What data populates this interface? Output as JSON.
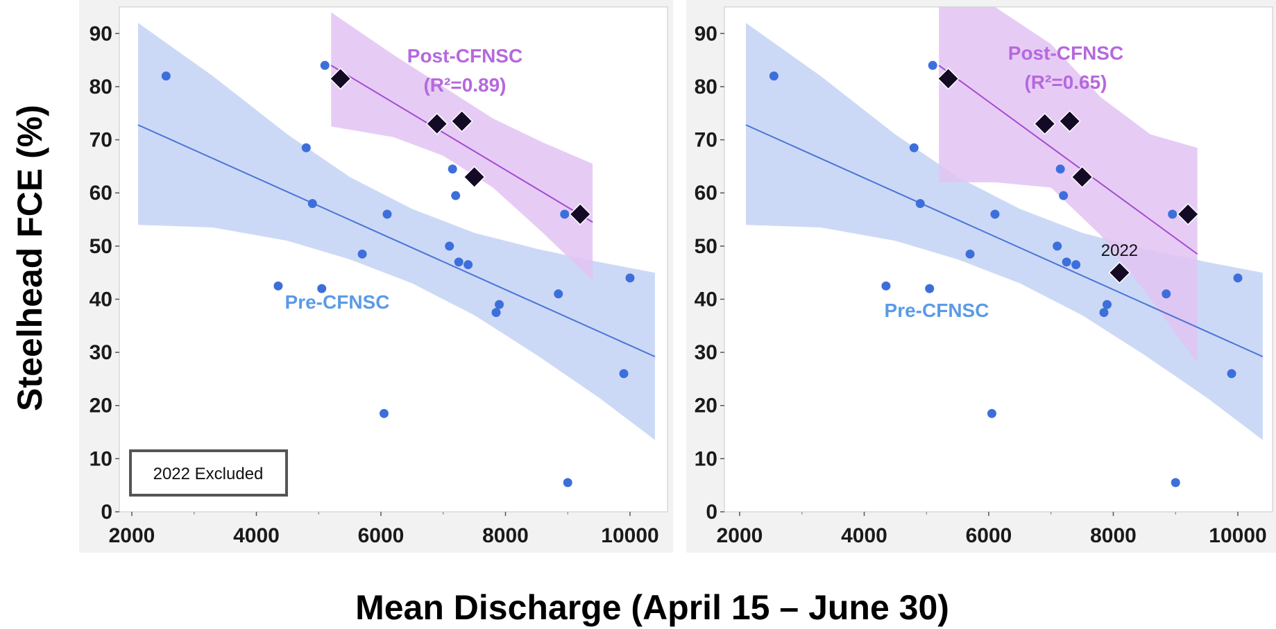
{
  "xlabel": "Mean Discharge (April 15 – June 30)",
  "ylabel": "Steelhead FCE (%)",
  "colors": {
    "pre_point": "#3d6fdb",
    "pre_line": "#4a74d6",
    "pre_band": "#c9d7f5",
    "post_point": "#150a26",
    "post_line": "#a64ad1",
    "post_band": "#e2c3f3",
    "post_label": "#b668dd",
    "pre_label": "#5b9be6"
  },
  "chart_data": [
    {
      "type": "scatter",
      "panel": "left",
      "xlim": [
        1900,
        10500
      ],
      "ylim": [
        0,
        95
      ],
      "x_ticks": [
        2000,
        4000,
        6000,
        8000,
        10000
      ],
      "y_ticks": [
        0,
        10,
        20,
        30,
        40,
        50,
        60,
        70,
        80,
        90
      ],
      "grid": false,
      "annotation": "2022 Excluded",
      "series": [
        {
          "name": "Pre-CFNSC",
          "marker": "circle",
          "points": [
            [
              2550,
              82
            ],
            [
              4350,
              42.5
            ],
            [
              4800,
              68.5
            ],
            [
              4900,
              58
            ],
            [
              5050,
              42
            ],
            [
              5100,
              84
            ],
            [
              5700,
              48.5
            ],
            [
              6050,
              18.5
            ],
            [
              6100,
              56
            ],
            [
              7100,
              50
            ],
            [
              7150,
              64.5
            ],
            [
              7200,
              59.5
            ],
            [
              7250,
              47
            ],
            [
              7400,
              46.5
            ],
            [
              7850,
              37.5
            ],
            [
              7900,
              39
            ],
            [
              8850,
              41
            ],
            [
              8950,
              56
            ],
            [
              9000,
              5.5
            ],
            [
              9900,
              26
            ],
            [
              10000,
              44
            ]
          ],
          "fit": {
            "x": [
              2100,
              10400
            ],
            "y": [
              72.8,
              29.2
            ]
          },
          "band_upper": [
            [
              2100,
              92
            ],
            [
              3300,
              82
            ],
            [
              4500,
              71
            ],
            [
              5500,
              63
            ],
            [
              6500,
              57
            ],
            [
              7500,
              52.5
            ],
            [
              8500,
              49.5
            ],
            [
              9500,
              47
            ],
            [
              10400,
              45
            ]
          ],
          "band_lower": [
            [
              2100,
              54
            ],
            [
              3300,
              53.5
            ],
            [
              4500,
              51
            ],
            [
              5500,
              47.5
            ],
            [
              6500,
              43
            ],
            [
              7500,
              37
            ],
            [
              8500,
              29.5
            ],
            [
              9500,
              21.5
            ],
            [
              10400,
              13.5
            ]
          ]
        },
        {
          "name": "Post-CFNSC",
          "label_detail": "(R²=0.89)",
          "marker": "diamond",
          "points": [
            [
              5350,
              81.5
            ],
            [
              6900,
              73
            ],
            [
              7300,
              73.5
            ],
            [
              7500,
              63
            ],
            [
              9200,
              56
            ]
          ],
          "fit": {
            "x": [
              5200,
              9400
            ],
            "y": [
              84,
              54.5
            ]
          },
          "band_upper": [
            [
              5200,
              94
            ],
            [
              6200,
              86
            ],
            [
              7000,
              80
            ],
            [
              7800,
              74
            ],
            [
              8600,
              69.5
            ],
            [
              9400,
              65.5
            ]
          ],
          "band_lower": [
            [
              5200,
              72.5
            ],
            [
              6200,
              70.5
            ],
            [
              7000,
              67
            ],
            [
              7800,
              61
            ],
            [
              8600,
              52.5
            ],
            [
              9400,
              43.5
            ]
          ]
        }
      ]
    },
    {
      "type": "scatter",
      "panel": "right",
      "xlim": [
        1900,
        10500
      ],
      "ylim": [
        0,
        95
      ],
      "x_ticks": [
        2000,
        4000,
        6000,
        8000,
        10000
      ],
      "y_ticks": [
        0,
        10,
        20,
        30,
        40,
        50,
        60,
        70,
        80,
        90
      ],
      "grid": false,
      "series": [
        {
          "name": "Pre-CFNSC",
          "marker": "circle",
          "points": [
            [
              2550,
              82
            ],
            [
              4350,
              42.5
            ],
            [
              4800,
              68.5
            ],
            [
              4900,
              58
            ],
            [
              5050,
              42
            ],
            [
              5100,
              84
            ],
            [
              5700,
              48.5
            ],
            [
              6050,
              18.5
            ],
            [
              6100,
              56
            ],
            [
              7100,
              50
            ],
            [
              7150,
              64.5
            ],
            [
              7200,
              59.5
            ],
            [
              7250,
              47
            ],
            [
              7400,
              46.5
            ],
            [
              7850,
              37.5
            ],
            [
              7900,
              39
            ],
            [
              8850,
              41
            ],
            [
              8950,
              56
            ],
            [
              9000,
              5.5
            ],
            [
              9900,
              26
            ],
            [
              10000,
              44
            ]
          ],
          "fit": {
            "x": [
              2100,
              10400
            ],
            "y": [
              72.8,
              29.2
            ]
          },
          "band_upper": [
            [
              2100,
              92
            ],
            [
              3300,
              82
            ],
            [
              4500,
              71
            ],
            [
              5500,
              63
            ],
            [
              6500,
              57
            ],
            [
              7500,
              52.5
            ],
            [
              8500,
              49.5
            ],
            [
              9500,
              47
            ],
            [
              10400,
              45
            ]
          ],
          "band_lower": [
            [
              2100,
              54
            ],
            [
              3300,
              53.5
            ],
            [
              4500,
              51
            ],
            [
              5500,
              47.5
            ],
            [
              6500,
              43
            ],
            [
              7500,
              37
            ],
            [
              8500,
              29.5
            ],
            [
              9500,
              21.5
            ],
            [
              10400,
              13.5
            ]
          ]
        },
        {
          "name": "Post-CFNSC",
          "label_detail": "(R²=0.65)",
          "marker": "diamond",
          "points": [
            [
              5350,
              81.5
            ],
            [
              6900,
              73
            ],
            [
              7300,
              73.5
            ],
            [
              7500,
              63
            ],
            [
              9200,
              56
            ],
            [
              8100,
              45
            ]
          ],
          "point_labels": [
            null,
            null,
            null,
            null,
            null,
            "2022"
          ],
          "fit": {
            "x": [
              5200,
              9350
            ],
            "y": [
              84,
              48.5
            ]
          },
          "band_upper": [
            [
              5200,
              95
            ],
            [
              6100,
              95
            ],
            [
              7000,
              88
            ],
            [
              7800,
              78
            ],
            [
              8600,
              71
            ],
            [
              9350,
              68.5
            ]
          ],
          "band_lower": [
            [
              5200,
              62
            ],
            [
              6100,
              62
            ],
            [
              7000,
              61
            ],
            [
              7800,
              52
            ],
            [
              8600,
              40
            ],
            [
              9350,
              28
            ]
          ]
        }
      ]
    }
  ]
}
